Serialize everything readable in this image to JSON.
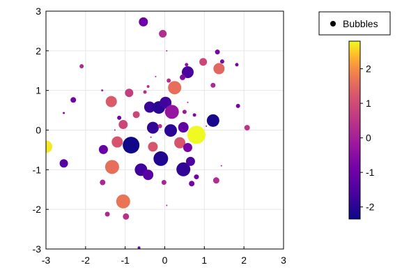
{
  "chart_data": {
    "type": "scatter",
    "title": "",
    "xlabel": "",
    "ylabel": "",
    "xlim": [
      -3,
      3
    ],
    "ylim": [
      -3,
      3
    ],
    "xticks": [
      "-3",
      "-2",
      "-1",
      "0",
      "1",
      "2",
      "3"
    ],
    "yticks": [
      "-3",
      "-2",
      "-1",
      "0",
      "1",
      "2",
      "3"
    ],
    "grid": true,
    "legend": {
      "entries": [
        "Bubbles"
      ],
      "placement": "top-right, outside plot"
    },
    "colorbar": {
      "range": [
        -2.35,
        2.8
      ],
      "ticks": [
        "-2",
        "-1",
        "0",
        "1",
        "2"
      ],
      "colormap": "plasma"
    },
    "series": [
      {
        "name": "Bubbles",
        "points": [
          {
            "x": -0.54,
            "y": 2.73,
            "c": -1.0
          },
          {
            "x": -0.05,
            "y": 2.43,
            "c": 0.3
          },
          {
            "x": 1.33,
            "y": 1.97,
            "c": -0.8
          },
          {
            "x": 1.45,
            "y": 1.73,
            "c": -0.7
          },
          {
            "x": 0.97,
            "y": 1.72,
            "c": 0.9
          },
          {
            "x": 1.37,
            "y": 1.55,
            "c": 1.5
          },
          {
            "x": 1.82,
            "y": 1.65,
            "c": -0.8
          },
          {
            "x": -2.1,
            "y": 1.61,
            "c": 0.2
          },
          {
            "x": 0.58,
            "y": 1.46,
            "c": -1.6
          },
          {
            "x": 0.45,
            "y": 1.33,
            "c": -0.6
          },
          {
            "x": 0.55,
            "y": 1.65,
            "c": -0.4
          },
          {
            "x": 0.1,
            "y": 1.25,
            "c": 0.3
          },
          {
            "x": 0.25,
            "y": 1.07,
            "c": 1.6
          },
          {
            "x": 1.22,
            "y": 1.13,
            "c": 0.2
          },
          {
            "x": -0.9,
            "y": 0.94,
            "c": 0.7
          },
          {
            "x": -0.5,
            "y": 0.96,
            "c": 0.4
          },
          {
            "x": -0.42,
            "y": 1.1,
            "c": 0.4
          },
          {
            "x": -2.31,
            "y": 0.76,
            "c": -0.9
          },
          {
            "x": -1.35,
            "y": 0.72,
            "c": 1.3
          },
          {
            "x": -0.38,
            "y": 0.58,
            "c": -1.8
          },
          {
            "x": -0.15,
            "y": 0.57,
            "c": -2.0
          },
          {
            "x": 0.02,
            "y": 0.69,
            "c": -1.7
          },
          {
            "x": 0.18,
            "y": 0.46,
            "c": -0.3
          },
          {
            "x": 1.85,
            "y": 0.61,
            "c": -0.8
          },
          {
            "x": -0.72,
            "y": 0.39,
            "c": 0.9
          },
          {
            "x": 0.5,
            "y": 0.46,
            "c": -0.2
          },
          {
            "x": 0.75,
            "y": 0.38,
            "c": -0.6
          },
          {
            "x": -1.05,
            "y": 0.14,
            "c": 0.9
          },
          {
            "x": -1.15,
            "y": 0.31,
            "c": -0.9
          },
          {
            "x": -0.3,
            "y": 0.06,
            "c": -1.9
          },
          {
            "x": -0.12,
            "y": 0.1,
            "c": 0.4
          },
          {
            "x": 0.15,
            "y": -0.01,
            "c": -2.0
          },
          {
            "x": 0.47,
            "y": 0.07,
            "c": -1.2
          },
          {
            "x": 0.8,
            "y": -0.12,
            "c": 2.8
          },
          {
            "x": 1.22,
            "y": 0.24,
            "c": -2.2
          },
          {
            "x": 2.08,
            "y": 0.06,
            "c": 0.5
          },
          {
            "x": -2.55,
            "y": 0.43,
            "c": -0.6
          },
          {
            "x": -3.0,
            "y": -0.42,
            "c": 2.7
          },
          {
            "x": -1.55,
            "y": -0.49,
            "c": -1.1
          },
          {
            "x": -1.2,
            "y": -0.3,
            "c": 1.2
          },
          {
            "x": -0.85,
            "y": -0.38,
            "c": -2.3
          },
          {
            "x": -0.3,
            "y": -0.42,
            "c": 1.2
          },
          {
            "x": -0.1,
            "y": -0.72,
            "c": -2.1
          },
          {
            "x": 0.38,
            "y": -0.32,
            "c": 1.2
          },
          {
            "x": 0.58,
            "y": -0.44,
            "c": -0.8
          },
          {
            "x": -2.55,
            "y": -0.84,
            "c": -1.4
          },
          {
            "x": -1.33,
            "y": -0.93,
            "c": 1.6
          },
          {
            "x": -0.6,
            "y": -1.0,
            "c": -1.7
          },
          {
            "x": -0.42,
            "y": -1.13,
            "c": -1.3
          },
          {
            "x": 0.47,
            "y": -0.99,
            "c": -1.9
          },
          {
            "x": 0.65,
            "y": -0.79,
            "c": -1.5
          },
          {
            "x": 1.3,
            "y": -1.27,
            "c": 0.3
          },
          {
            "x": -1.57,
            "y": -1.32,
            "c": 0.1
          },
          {
            "x": -0.02,
            "y": -1.32,
            "c": 0.1
          },
          {
            "x": 0.8,
            "y": -1.18,
            "c": -0.9
          },
          {
            "x": -1.05,
            "y": -1.8,
            "c": 1.7
          },
          {
            "x": -1.45,
            "y": -2.12,
            "c": 0.2
          },
          {
            "x": -0.98,
            "y": -2.18,
            "c": 0.4
          },
          {
            "x": 0.68,
            "y": -1.35,
            "c": -0.9
          },
          {
            "x": -0.65,
            "y": -2.97,
            "c": -0.9
          },
          {
            "x": -1.58,
            "y": 1.0,
            "c": 0.0
          },
          {
            "x": 0.05,
            "y": 2.0,
            "c": 0.0
          },
          {
            "x": -0.23,
            "y": 1.35,
            "c": 0.0
          },
          {
            "x": -1.26,
            "y": 0.0,
            "c": 0.0
          },
          {
            "x": 0.58,
            "y": 0.7,
            "c": 0.0
          },
          {
            "x": 1.05,
            "y": 0.1,
            "c": 0.0
          },
          {
            "x": -0.35,
            "y": -0.18,
            "c": 0.0
          },
          {
            "x": 0.05,
            "y": -1.9,
            "c": 0.0
          },
          {
            "x": 1.43,
            "y": -0.9,
            "c": 0.0
          }
        ],
        "sizes": [
          13,
          11,
          7,
          6,
          11,
          16,
          5,
          6,
          17,
          8,
          5,
          6,
          19,
          7,
          12,
          5,
          4,
          8,
          16,
          16,
          18,
          17,
          20,
          6,
          10,
          6,
          5,
          13,
          6,
          17,
          6,
          18,
          15,
          26,
          18,
          8,
          3,
          18,
          13,
          16,
          24,
          14,
          21,
          16,
          13,
          12,
          20,
          18,
          15,
          20,
          13,
          9,
          8,
          7,
          7,
          20,
          7,
          9,
          8,
          4,
          3,
          2,
          2,
          2,
          2,
          2,
          2,
          2,
          2
        ]
      }
    ]
  }
}
